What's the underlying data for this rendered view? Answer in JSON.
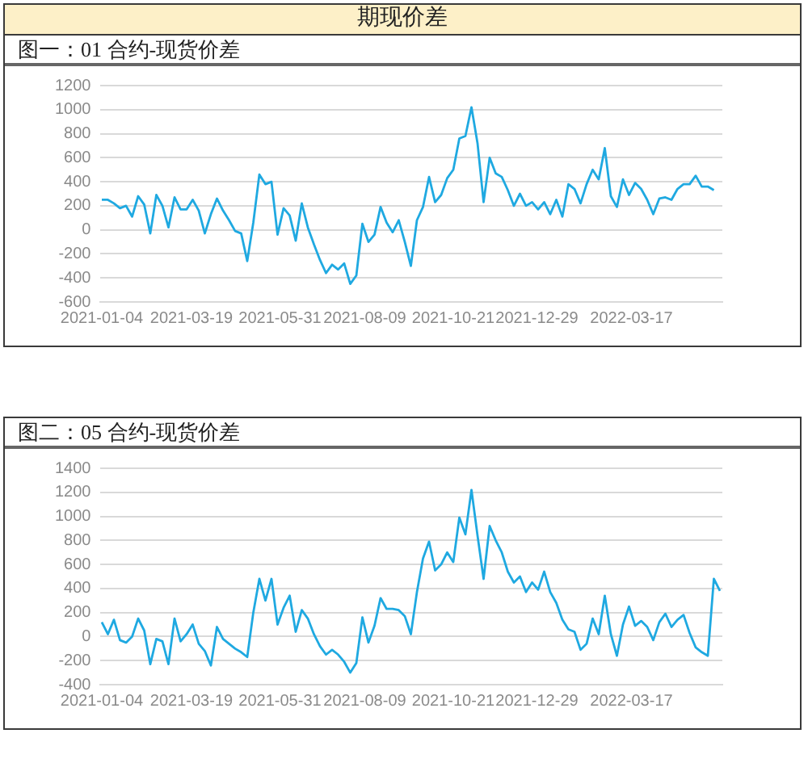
{
  "chart_data": [
    {
      "type": "line",
      "title": "期现价差",
      "subtitle": "图一：01 合约-现货价差",
      "x": [
        "2021-01-04",
        "2021-01-09",
        "2021-01-14",
        "2021-01-19",
        "2021-01-24",
        "2021-01-29",
        "2021-02-03",
        "2021-02-08",
        "2021-02-13",
        "2021-02-18",
        "2021-02-23",
        "2021-02-28",
        "2021-03-05",
        "2021-03-10",
        "2021-03-15",
        "2021-03-20",
        "2021-03-25",
        "2021-03-30",
        "2021-04-04",
        "2021-04-09",
        "2021-04-14",
        "2021-04-19",
        "2021-04-24",
        "2021-04-29",
        "2021-05-04",
        "2021-05-09",
        "2021-05-14",
        "2021-05-19",
        "2021-05-24",
        "2021-05-29",
        "2021-06-03",
        "2021-06-08",
        "2021-06-13",
        "2021-06-18",
        "2021-06-23",
        "2021-06-28",
        "2021-07-03",
        "2021-07-08",
        "2021-07-13",
        "2021-07-18",
        "2021-07-23",
        "2021-07-28",
        "2021-08-02",
        "2021-08-07",
        "2021-08-12",
        "2021-08-17",
        "2021-08-22",
        "2021-08-27",
        "2021-09-01",
        "2021-09-06",
        "2021-09-11",
        "2021-09-16",
        "2021-09-21",
        "2021-09-26",
        "2021-10-01",
        "2021-10-06",
        "2021-10-11",
        "2021-10-16",
        "2021-10-21",
        "2021-10-26",
        "2021-10-31",
        "2021-11-05",
        "2021-11-10",
        "2021-11-15",
        "2021-11-20",
        "2021-11-25",
        "2021-11-30",
        "2021-12-05",
        "2021-12-10",
        "2021-12-15",
        "2021-12-20",
        "2021-12-25",
        "2021-12-30",
        "2022-01-04",
        "2022-01-09",
        "2022-01-14",
        "2022-01-19",
        "2022-01-24",
        "2022-01-29",
        "2022-02-03",
        "2022-02-08",
        "2022-02-13",
        "2022-02-18",
        "2022-02-23",
        "2022-02-28",
        "2022-03-05",
        "2022-03-10",
        "2022-03-15",
        "2022-03-20",
        "2022-03-25",
        "2022-03-30",
        "2022-04-04",
        "2022-04-09",
        "2022-04-14",
        "2022-04-19",
        "2022-04-24",
        "2022-04-29",
        "2022-05-04",
        "2022-05-09",
        "2022-05-14",
        "2022-05-19",
        "2022-05-24"
      ],
      "values": [
        250,
        250,
        220,
        180,
        200,
        110,
        280,
        210,
        -30,
        290,
        200,
        20,
        270,
        170,
        170,
        250,
        160,
        -30,
        130,
        260,
        160,
        80,
        -10,
        -30,
        -260,
        60,
        460,
        380,
        400,
        -40,
        180,
        120,
        -90,
        220,
        20,
        -120,
        -250,
        -360,
        -290,
        -330,
        -280,
        -450,
        -380,
        50,
        -100,
        -40,
        190,
        60,
        -20,
        80,
        -100,
        -300,
        80,
        190,
        440,
        230,
        290,
        430,
        500,
        760,
        780,
        1020,
        720,
        230,
        600,
        470,
        440,
        330,
        200,
        300,
        200,
        230,
        170,
        230,
        130,
        250,
        110,
        380,
        340,
        220,
        380,
        500,
        420,
        680,
        280,
        190,
        420,
        290,
        390,
        340,
        250,
        130,
        260,
        270,
        250,
        340,
        380,
        380,
        450,
        360,
        360,
        330
      ],
      "color": "#1fa9e1",
      "xlim": [
        "2021-01-03",
        "2022-05-31"
      ],
      "xticks": [
        "2021-01-04",
        "2021-03-19",
        "2021-05-31",
        "2021-08-09",
        "2021-10-21",
        "2021-12-29",
        "2022-03-17"
      ],
      "ylim": [
        -600,
        1200
      ],
      "yticks": [
        -600,
        -400,
        -200,
        0,
        200,
        400,
        600,
        800,
        1000,
        1200
      ],
      "grid": "y"
    },
    {
      "type": "line",
      "title": "图二：05 合约-现货价差",
      "x": [
        "2021-01-04",
        "2021-01-09",
        "2021-01-14",
        "2021-01-19",
        "2021-01-24",
        "2021-01-29",
        "2021-02-03",
        "2021-02-08",
        "2021-02-13",
        "2021-02-18",
        "2021-02-23",
        "2021-02-28",
        "2021-03-05",
        "2021-03-10",
        "2021-03-15",
        "2021-03-20",
        "2021-03-25",
        "2021-03-30",
        "2021-04-04",
        "2021-04-09",
        "2021-04-14",
        "2021-04-19",
        "2021-04-24",
        "2021-04-29",
        "2021-05-04",
        "2021-05-09",
        "2021-05-14",
        "2021-05-19",
        "2021-05-24",
        "2021-05-29",
        "2021-06-03",
        "2021-06-08",
        "2021-06-13",
        "2021-06-18",
        "2021-06-23",
        "2021-06-28",
        "2021-07-03",
        "2021-07-08",
        "2021-07-13",
        "2021-07-18",
        "2021-07-23",
        "2021-07-28",
        "2021-08-02",
        "2021-08-07",
        "2021-08-12",
        "2021-08-17",
        "2021-08-22",
        "2021-08-27",
        "2021-09-01",
        "2021-09-06",
        "2021-09-11",
        "2021-09-16",
        "2021-09-21",
        "2021-09-26",
        "2021-10-01",
        "2021-10-06",
        "2021-10-11",
        "2021-10-16",
        "2021-10-21",
        "2021-10-26",
        "2021-10-31",
        "2021-11-05",
        "2021-11-10",
        "2021-11-15",
        "2021-11-20",
        "2021-11-25",
        "2021-11-30",
        "2021-12-05",
        "2021-12-10",
        "2021-12-15",
        "2021-12-20",
        "2021-12-25",
        "2021-12-30",
        "2022-01-04",
        "2022-01-09",
        "2022-01-14",
        "2022-01-19",
        "2022-01-24",
        "2022-01-29",
        "2022-02-03",
        "2022-02-08",
        "2022-02-13",
        "2022-02-18",
        "2022-02-23",
        "2022-02-28",
        "2022-03-05",
        "2022-03-10",
        "2022-03-15",
        "2022-03-20",
        "2022-03-25",
        "2022-03-30",
        "2022-04-04",
        "2022-04-09",
        "2022-04-14",
        "2022-04-19",
        "2022-04-24",
        "2022-04-29",
        "2022-05-04",
        "2022-05-09",
        "2022-05-14",
        "2022-05-19",
        "2022-05-24",
        "2022-05-29"
      ],
      "values": [
        120,
        20,
        140,
        -30,
        -50,
        0,
        150,
        50,
        -230,
        -20,
        -40,
        -230,
        150,
        -40,
        20,
        100,
        -60,
        -120,
        -240,
        80,
        -20,
        -60,
        -100,
        -130,
        -170,
        200,
        480,
        300,
        480,
        100,
        240,
        340,
        40,
        220,
        150,
        20,
        -80,
        -150,
        -110,
        -150,
        -210,
        -300,
        -220,
        160,
        -50,
        90,
        320,
        230,
        230,
        220,
        170,
        20,
        370,
        650,
        790,
        550,
        600,
        700,
        620,
        990,
        850,
        1220,
        840,
        480,
        920,
        800,
        700,
        540,
        450,
        500,
        370,
        450,
        390,
        540,
        370,
        280,
        140,
        60,
        40,
        -110,
        -60,
        150,
        20,
        340,
        20,
        -160,
        100,
        250,
        90,
        130,
        80,
        -30,
        120,
        190,
        80,
        140,
        180,
        30,
        -90,
        -130,
        -160,
        480,
        380
      ],
      "color": "#1fa9e1",
      "xlim": [
        "2021-01-03",
        "2022-05-31"
      ],
      "xticks": [
        "2021-01-04",
        "2021-03-19",
        "2021-05-31",
        "2021-08-09",
        "2021-10-21",
        "2021-12-29",
        "2022-03-17"
      ],
      "ylim": [
        -400,
        1400
      ],
      "yticks": [
        -400,
        -200,
        0,
        200,
        400,
        600,
        800,
        1000,
        1200,
        1400
      ],
      "grid": "y"
    }
  ]
}
